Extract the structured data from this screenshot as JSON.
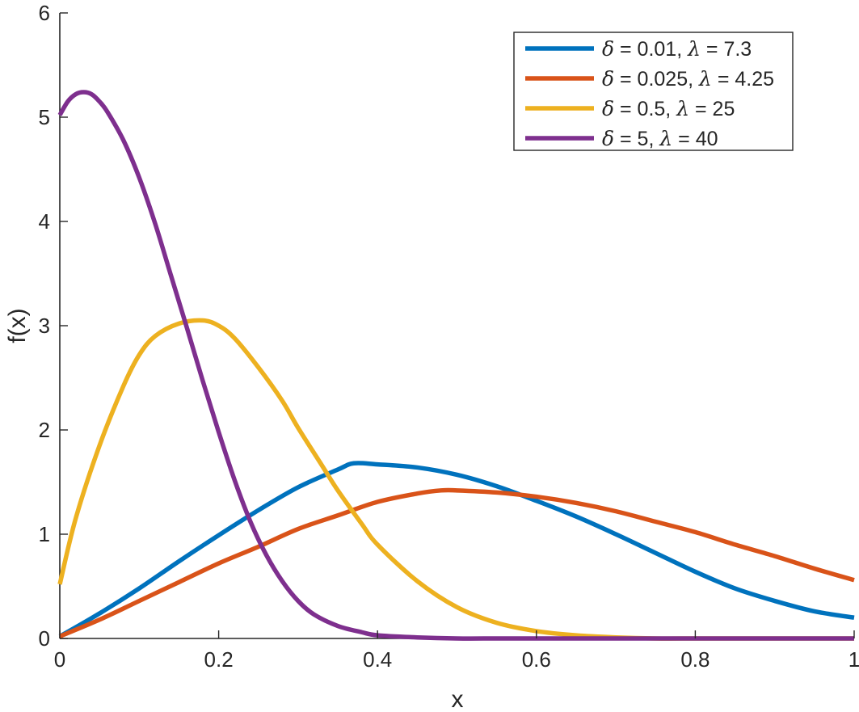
{
  "chart_data": {
    "type": "line",
    "title": "",
    "xlabel": "x",
    "ylabel": "f(x)",
    "xlim": [
      0,
      1
    ],
    "ylim": [
      0,
      6
    ],
    "xticks": [
      0,
      0.2,
      0.4,
      0.6,
      0.8,
      1
    ],
    "xtick_labels": [
      "0",
      "0.2",
      "0.4",
      "0.6",
      "0.8",
      "1"
    ],
    "yticks": [
      0,
      1,
      2,
      3,
      4,
      5,
      6
    ],
    "ytick_labels": [
      "0",
      "1",
      "2",
      "3",
      "4",
      "5",
      "6"
    ],
    "grid": false,
    "legend_position": "top-right",
    "series": [
      {
        "name": "δ = 0.01, λ = 7.3",
        "legend": {
          "delta": "0.01",
          "lambda": "7.3"
        },
        "color": "#0072BD",
        "x": [
          0,
          0.05,
          0.1,
          0.15,
          0.2,
          0.25,
          0.3,
          0.35,
          0.37,
          0.4,
          0.45,
          0.5,
          0.55,
          0.6,
          0.65,
          0.7,
          0.75,
          0.8,
          0.85,
          0.9,
          0.95,
          1
        ],
        "y": [
          0.02,
          0.24,
          0.48,
          0.74,
          0.99,
          1.23,
          1.45,
          1.62,
          1.68,
          1.67,
          1.64,
          1.57,
          1.46,
          1.32,
          1.17,
          1.0,
          0.82,
          0.64,
          0.48,
          0.36,
          0.26,
          0.2
        ]
      },
      {
        "name": "δ = 0.025, λ = 4.25",
        "legend": {
          "delta": "0.025",
          "lambda": "4.25"
        },
        "color": "#D95319",
        "x": [
          0,
          0.05,
          0.1,
          0.15,
          0.2,
          0.25,
          0.3,
          0.35,
          0.4,
          0.45,
          0.48,
          0.5,
          0.55,
          0.6,
          0.65,
          0.7,
          0.75,
          0.8,
          0.85,
          0.9,
          0.95,
          1
        ],
        "y": [
          0.02,
          0.18,
          0.36,
          0.54,
          0.72,
          0.88,
          1.05,
          1.18,
          1.31,
          1.39,
          1.42,
          1.42,
          1.4,
          1.36,
          1.3,
          1.22,
          1.12,
          1.02,
          0.9,
          0.79,
          0.67,
          0.56
        ]
      },
      {
        "name": "δ = 0.5, λ = 25",
        "legend": {
          "delta": "0.5",
          "lambda": "25"
        },
        "color": "#EDB120",
        "x": [
          0,
          0.02,
          0.05,
          0.08,
          0.1,
          0.12,
          0.15,
          0.18,
          0.2,
          0.22,
          0.25,
          0.28,
          0.3,
          0.33,
          0.35,
          0.38,
          0.4,
          0.45,
          0.5,
          0.55,
          0.6,
          0.65,
          0.7,
          0.75,
          0.8,
          0.85,
          0.9,
          0.95,
          1
        ],
        "y": [
          0.52,
          1.15,
          1.85,
          2.42,
          2.72,
          2.9,
          3.02,
          3.05,
          3.0,
          2.88,
          2.6,
          2.28,
          2.02,
          1.66,
          1.42,
          1.1,
          0.9,
          0.55,
          0.3,
          0.15,
          0.07,
          0.03,
          0.01,
          0.0,
          0.0,
          0.0,
          0.0,
          0.0,
          0.0
        ]
      },
      {
        "name": "δ = 5, λ = 40",
        "legend": {
          "delta": "5",
          "lambda": "40"
        },
        "color": "#7E2F8E",
        "x": [
          0,
          0.01,
          0.02,
          0.03,
          0.04,
          0.05,
          0.06,
          0.08,
          0.1,
          0.12,
          0.14,
          0.16,
          0.18,
          0.2,
          0.22,
          0.24,
          0.26,
          0.28,
          0.3,
          0.32,
          0.35,
          0.38,
          0.4,
          0.45,
          0.5,
          0.55,
          0.6,
          0.7,
          0.8,
          0.9,
          1
        ],
        "y": [
          5.02,
          5.15,
          5.22,
          5.24,
          5.22,
          5.15,
          5.05,
          4.78,
          4.42,
          3.98,
          3.48,
          2.98,
          2.47,
          1.98,
          1.52,
          1.12,
          0.8,
          0.55,
          0.36,
          0.23,
          0.12,
          0.06,
          0.03,
          0.01,
          0.0,
          0.0,
          0.0,
          0.0,
          0.0,
          0.0,
          0.0
        ]
      }
    ]
  }
}
